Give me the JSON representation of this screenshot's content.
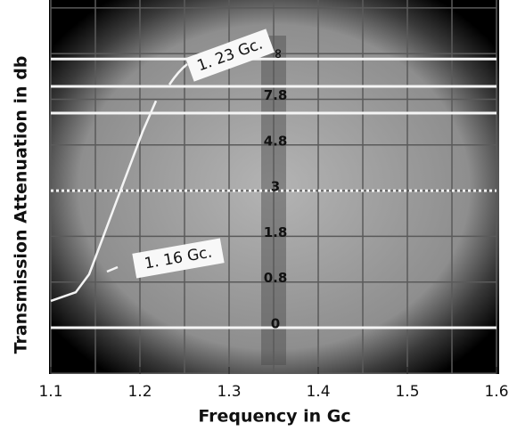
{
  "chart_data": {
    "type": "line",
    "xlabel": "Frequency in Gc",
    "ylabel": "Transmission Attenuation in db",
    "x": [
      1.1,
      1.128,
      1.143,
      1.158,
      1.173,
      1.188,
      1.203,
      1.218
    ],
    "series": [
      {
        "name": "1. 16 Gc.",
        "color": "#f4f4f4",
        "values": [
          0.47,
          0.62,
          0.97,
          1.75,
          2.68,
          3.92,
          5.67,
          7.7
        ]
      }
    ],
    "xlim": [
      1.1,
      1.6
    ],
    "xticks": [
      1.1,
      1.2,
      1.3,
      1.4,
      1.5,
      1.6
    ],
    "yticks": [
      0,
      0.8,
      1.8,
      3.0,
      4.8,
      7.8
    ],
    "top_label": "∞",
    "annotations": [
      "1. 23 Gc.",
      "1. 16 Gc."
    ],
    "grid": true
  }
}
